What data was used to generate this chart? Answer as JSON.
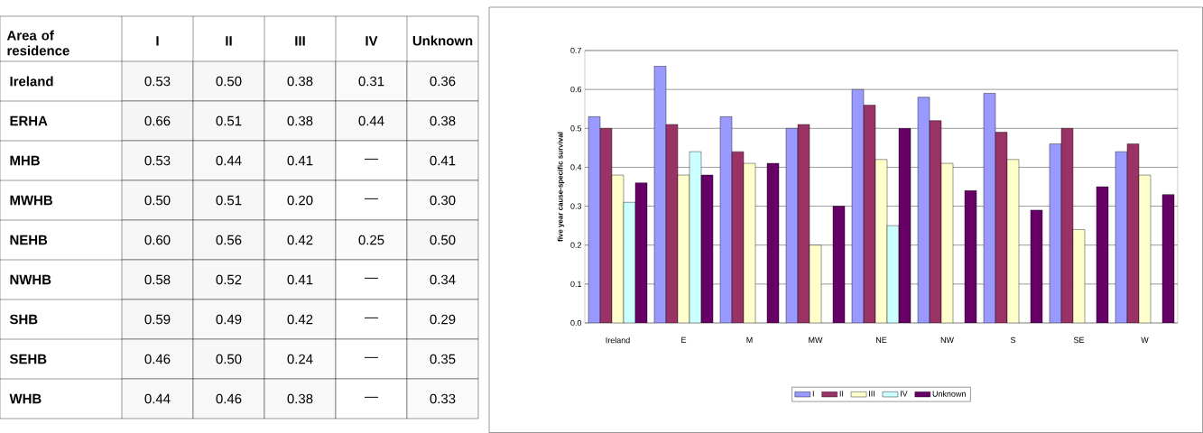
{
  "chart_data": [
    {
      "type": "heatmap",
      "ylabel": "Area of residence",
      "categories": [
        "I",
        "II",
        "III",
        "IV",
        "Unknown"
      ],
      "y_categories": [
        "Ireland",
        "ERHA",
        "MHB",
        "MWHB",
        "NEHB",
        "NWHB",
        "SHB",
        "SEHB",
        "WHB"
      ],
      "cells": [
        [
          0.53,
          0.5,
          0.38,
          0.31,
          0.36
        ],
        [
          0.66,
          0.51,
          0.38,
          0.44,
          0.38
        ],
        [
          0.53,
          0.44,
          0.41,
          null,
          0.41
        ],
        [
          0.5,
          0.51,
          0.2,
          null,
          0.3
        ],
        [
          0.6,
          0.56,
          0.42,
          0.25,
          0.5
        ],
        [
          0.58,
          0.52,
          0.41,
          null,
          0.34
        ],
        [
          0.59,
          0.49,
          0.42,
          null,
          0.29
        ],
        [
          0.46,
          0.5,
          0.24,
          null,
          0.35
        ],
        [
          0.44,
          0.46,
          0.38,
          null,
          0.33
        ]
      ],
      "cell_labels": [
        [
          "0.53",
          "0.50",
          "0.38",
          "0.31",
          "0.36"
        ],
        [
          "0.66",
          "0.51",
          "0.38",
          "0.44",
          "0.38"
        ],
        [
          "0.53",
          "0.44",
          "0.41",
          "—",
          "0.41"
        ],
        [
          "0.50",
          "0.51",
          "0.20",
          "—",
          "0.30"
        ],
        [
          "0.60",
          "0.56",
          "0.42",
          "0.25",
          "0.50"
        ],
        [
          "0.58",
          "0.52",
          "0.41",
          "—",
          "0.34"
        ],
        [
          "0.59",
          "0.49",
          "0.42",
          "—",
          "0.29"
        ],
        [
          "0.46",
          "0.50",
          "0.24",
          "—",
          "0.35"
        ],
        [
          "0.44",
          "0.46",
          "0.38",
          "—",
          "0.33"
        ]
      ]
    },
    {
      "type": "bar",
      "ylabel": "five year cause-specific survival",
      "categories": [
        "Ireland",
        "E",
        "M",
        "MW",
        "NE",
        "NW",
        "S",
        "SE",
        "W"
      ],
      "series": [
        {
          "name": "I",
          "color": "#9999ff",
          "values": [
            0.53,
            0.66,
            0.53,
            0.5,
            0.6,
            0.58,
            0.59,
            0.46,
            0.44
          ]
        },
        {
          "name": "II",
          "color": "#993366",
          "values": [
            0.5,
            0.51,
            0.44,
            0.51,
            0.56,
            0.52,
            0.49,
            0.5,
            0.46
          ]
        },
        {
          "name": "III",
          "color": "#ffffcc",
          "values": [
            0.38,
            0.38,
            0.41,
            0.2,
            0.42,
            0.41,
            0.42,
            0.24,
            0.38
          ]
        },
        {
          "name": "IV",
          "color": "#ccffff",
          "values": [
            0.31,
            0.44,
            null,
            null,
            0.25,
            null,
            null,
            null,
            null
          ]
        },
        {
          "name": "Unknown",
          "color": "#660066",
          "values": [
            0.36,
            0.38,
            0.41,
            0.3,
            0.5,
            0.34,
            0.29,
            0.35,
            0.33
          ]
        }
      ],
      "ylim": [
        0,
        0.7
      ],
      "yticks": [
        {
          "value": 0,
          "label": "0.0"
        },
        {
          "value": 0.1,
          "label": "0.1"
        },
        {
          "value": 0.2,
          "label": "0.2"
        },
        {
          "value": 0.3,
          "label": "0.3"
        },
        {
          "value": 0.4,
          "label": "0.4"
        },
        {
          "value": 0.5,
          "label": "0.5"
        },
        {
          "value": 0.6,
          "label": "0.6"
        },
        {
          "value": 0.7,
          "label": "0.7"
        }
      ],
      "grid": "y",
      "legend": "bottom"
    }
  ]
}
